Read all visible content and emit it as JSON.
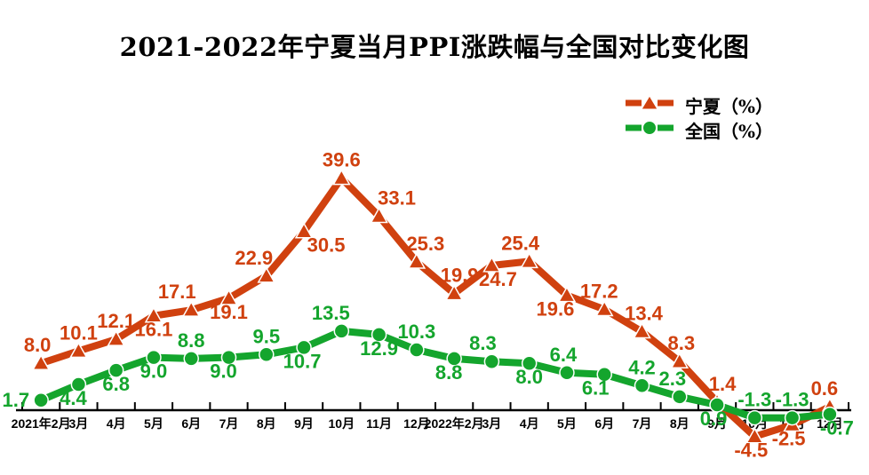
{
  "page": {
    "background": "#ffffff"
  },
  "chart_data": {
    "type": "line",
    "title": "2021-2022年宁夏当月PPI涨跌幅与全国对比变化图",
    "xlabel": "",
    "ylabel": "",
    "ylim": [
      -8,
      44
    ],
    "grid": false,
    "legend_position": "top-right",
    "axis_color": "#000000",
    "categories": [
      "2021年2月",
      "3月",
      "4月",
      "5月",
      "6月",
      "7月",
      "8月",
      "9月",
      "10月",
      "11月",
      "12月",
      "2022年2月",
      "3月",
      "4月",
      "5月",
      "6月",
      "7月",
      "8月",
      "9月",
      "10月",
      "11月",
      "12月"
    ],
    "series": [
      {
        "key": "ningxia",
        "name": "宁夏（%）",
        "color": "#d0410f",
        "marker": "triangle",
        "values": [
          8.0,
          10.1,
          12.1,
          16.1,
          17.1,
          19.1,
          22.9,
          30.5,
          39.6,
          33.1,
          25.3,
          19.9,
          24.7,
          25.4,
          19.6,
          17.2,
          13.4,
          8.3,
          1.4,
          -4.5,
          -2.5,
          0.6
        ],
        "label_side": [
          "above",
          "above",
          "above",
          "below",
          "above",
          "below",
          "above",
          "below",
          "above",
          "above",
          "above",
          "above",
          "below",
          "above",
          "below",
          "above",
          "above",
          "above",
          "above",
          "below",
          "below",
          "above"
        ],
        "label_dx": [
          -4,
          0,
          0,
          0,
          -16,
          0,
          -14,
          25,
          0,
          20,
          10,
          6,
          7,
          -10,
          -13,
          -6,
          2,
          2,
          6,
          -4,
          -4,
          -6
        ]
      },
      {
        "key": "national",
        "name": "全国（%）",
        "color": "#14a52d",
        "marker": "circle",
        "values": [
          1.7,
          4.4,
          6.8,
          9.0,
          8.8,
          9.0,
          9.5,
          10.7,
          13.5,
          12.9,
          10.3,
          8.8,
          8.3,
          8.0,
          6.4,
          6.1,
          4.2,
          2.3,
          0.9,
          -1.3,
          -1.3,
          -0.7
        ],
        "label_side": [
          "left",
          "below",
          "below",
          "below",
          "above",
          "below",
          "above",
          "below",
          "above",
          "below",
          "above",
          "below",
          "above",
          "below",
          "above",
          "below",
          "above",
          "above",
          "below",
          "above",
          "above",
          "below"
        ],
        "label_dx": [
          0,
          -6,
          0,
          0,
          0,
          -6,
          0,
          -2,
          -12,
          0,
          0,
          -6,
          -10,
          0,
          -4,
          -10,
          0,
          -8,
          -4,
          0,
          0,
          8
        ]
      }
    ]
  }
}
